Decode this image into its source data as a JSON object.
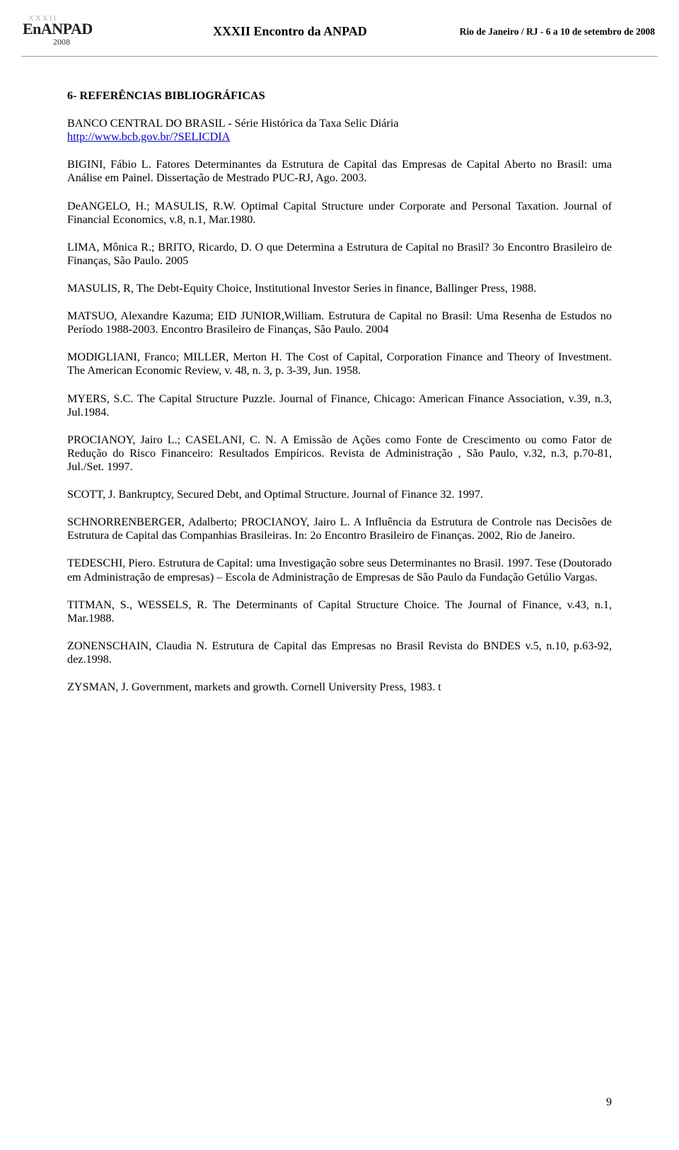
{
  "header": {
    "logo_top": "XXXII",
    "logo_main": "EnANPAD",
    "logo_year": "2008",
    "center": "XXXII Encontro da ANPAD",
    "right": "Rio de Janeiro / RJ - 6 a 10 de setembro de 2008"
  },
  "section_title": "6- REFERÊNCIAS BIBLIOGRÁFICAS",
  "refs": {
    "r1a": "BANCO CENTRAL DO BRASIL - Série Histórica da Taxa Selic Diária",
    "r1_link": "http://www.bcb.gov.br/?SELICDIA",
    "r2": "BIGINI, Fábio L. Fatores Determinantes da Estrutura de Capital das Empresas de Capital Aberto no Brasil: uma Análise em Painel. Dissertação de Mestrado PUC-RJ, Ago. 2003.",
    "r3": "DeANGELO, H.; MASULIS, R.W. Optimal Capital Structure under Corporate and Personal Taxation. Journal of Financial Economics, v.8, n.1, Mar.1980.",
    "r4": "LIMA, Mônica R.; BRITO, Ricardo, D. O que Determina a Estrutura de Capital no Brasil? 3o Encontro Brasileiro de Finanças, São Paulo. 2005",
    "r5": "MASULIS, R, The Debt-Equity Choice, Institutional Investor Series in finance, Ballinger Press, 1988.",
    "r6": "MATSUO, Alexandre Kazuma; EID JUNIOR,William. Estrutura de Capital no Brasil: Uma Resenha de Estudos no Período 1988-2003.  Encontro Brasileiro de Finanças, São Paulo. 2004",
    "r7": "MODIGLIANI, Franco; MILLER, Merton H. The Cost of Capital, Corporation Finance and Theory of Investment. The American Economic Review, v. 48, n. 3, p. 3-39, Jun. 1958.",
    "r8": "MYERS, S.C. The Capital Structure Puzzle. Journal of Finance, Chicago: American Finance Association, v.39, n.3, Jul.1984.",
    "r9": "PROCIANOY, Jairo L.; CASELANI, C. N. A Emissão de Ações como Fonte de Crescimento ou como Fator de Redução do Risco Financeiro: Resultados Empíricos. Revista de Administração , São Paulo, v.32, n.3, p.70-81, Jul./Set. 1997.",
    "r10": "SCOTT, J. Bankruptcy, Secured Debt, and Optimal Structure. Journal of Finance 32. 1997.",
    "r11": "SCHNORRENBERGER, Adalberto; PROCIANOY, Jairo L. A Influência da Estrutura de Controle nas Decisões de Estrutura de Capital das Companhias Brasileiras. In: 2o Encontro Brasileiro de Finanças. 2002, Rio de Janeiro.",
    "r12": "TEDESCHI, Piero. Estrutura de Capital: uma Investigação sobre seus Determinantes no Brasil. 1997. Tese (Doutorado em Administração de empresas) – Escola de Administração de Empresas de São Paulo da Fundação Getúlio Vargas.",
    "r13": "TITMAN, S., WESSELS, R. The Determinants of Capital Structure Choice. The Journal of Finance, v.43, n.1, Mar.1988.",
    "r14": "ZONENSCHAIN, Claudia N. Estrutura de Capital das Empresas no Brasil Revista do BNDES v.5, n.10, p.63-92, dez.1998.",
    "r15": "ZYSMAN, J. Government, markets and growth. Cornell University Press, 1983. t"
  },
  "page_number": "9",
  "colors": {
    "text": "#000000",
    "link": "#0000cc",
    "background": "#ffffff",
    "header_rule": "#999999",
    "logo_faded": "#b0b0b0"
  },
  "typography": {
    "body_family": "Times New Roman, serif",
    "body_size_pt": 12,
    "header_center_size_pt": 14,
    "header_right_size_pt": 10
  }
}
